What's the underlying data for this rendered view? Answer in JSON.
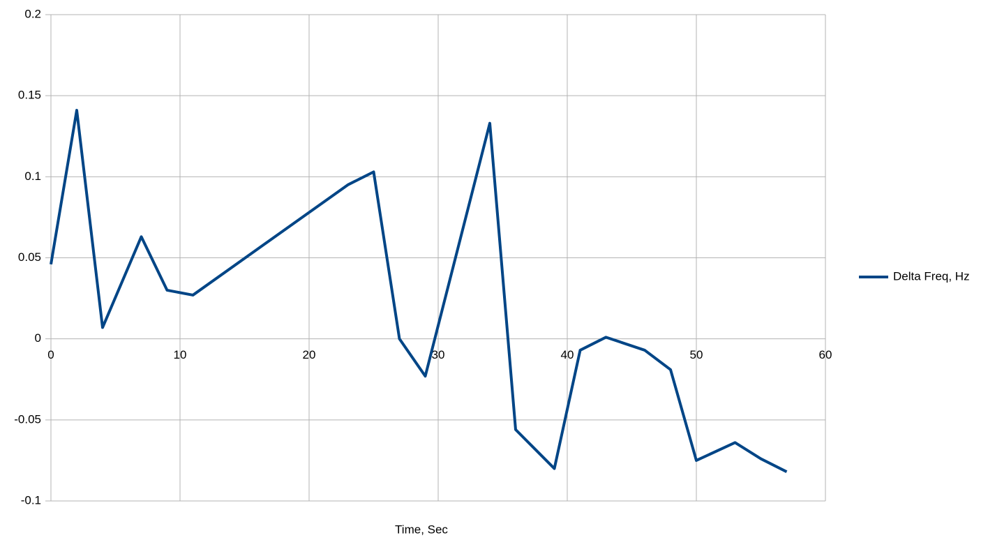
{
  "chart_data": {
    "type": "line",
    "x_label": "Time, Sec",
    "x": [
      0,
      2,
      4,
      7,
      9,
      11,
      23,
      25,
      27,
      29,
      34,
      36,
      39,
      41,
      43,
      46,
      48,
      50,
      53,
      55,
      57
    ],
    "series": [
      {
        "name": "Delta Freq, Hz",
        "color": "#004586",
        "values": [
          0.046,
          0.141,
          0.007,
          0.063,
          0.03,
          0.027,
          0.095,
          0.103,
          0,
          -0.023,
          0.133,
          -0.056,
          -0.08,
          -0.007,
          0.001,
          -0.007,
          -0.019,
          -0.075,
          -0.064,
          -0.074,
          -0.082
        ]
      }
    ],
    "xlim": [
      0,
      60
    ],
    "xticks": [
      0,
      10,
      20,
      30,
      40,
      50,
      60
    ],
    "ylim": [
      -0.1,
      0.2
    ],
    "yticks": [
      -0.1,
      -0.05,
      0,
      0.05,
      0.1,
      0.15,
      0.2
    ],
    "grid": true,
    "legend": "right"
  }
}
